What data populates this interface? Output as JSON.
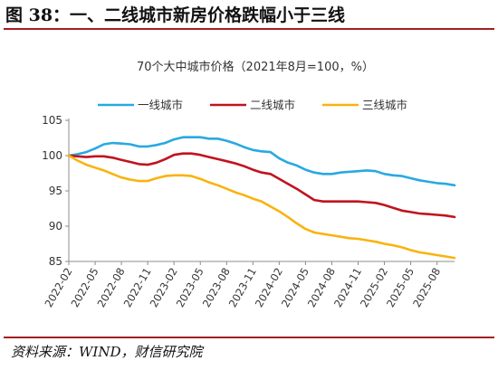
{
  "figure": {
    "label": "图 38：一、二线城市新房价格跌幅小于三线",
    "source": "资料来源：WIND，财信研究院",
    "colors": {
      "rule": "#a41e22"
    }
  },
  "chart_data": {
    "type": "line",
    "title": "70个大中城市价格（2021年8月=100，%）",
    "xlabel": "",
    "ylabel": "",
    "ylim": [
      85,
      105
    ],
    "yticks": [
      85,
      90,
      95,
      100,
      105
    ],
    "grid": false,
    "legend_position": "top",
    "x": [
      "2022-02",
      "2022-03",
      "2022-04",
      "2022-05",
      "2022-06",
      "2022-07",
      "2022-08",
      "2022-09",
      "2022-10",
      "2022-11",
      "2022-12",
      "2023-01",
      "2023-02",
      "2023-03",
      "2023-04",
      "2023-05",
      "2023-06",
      "2023-07",
      "2023-08",
      "2023-09",
      "2023-10",
      "2023-11",
      "2023-12",
      "2024-01",
      "2024-02",
      "2024-03",
      "2024-04",
      "2024-05",
      "2024-06",
      "2024-07",
      "2024-08",
      "2024-09",
      "2024-10",
      "2024-11",
      "2024-12",
      "2025-01",
      "2025-02",
      "2025-03",
      "2025-04",
      "2025-05",
      "2025-06",
      "2025-07",
      "2025-08",
      "2025-09",
      "2025-10"
    ],
    "xtick_labels": [
      "2022-02",
      "2022-05",
      "2022-08",
      "2022-11",
      "2023-02",
      "2023-05",
      "2023-08",
      "2023-11",
      "2024-02",
      "2024-05",
      "2024-08",
      "2024-11",
      "2025-02",
      "2025-05",
      "2025-08"
    ],
    "series": [
      {
        "name": "一线城市",
        "color": "#29a9e1",
        "values": [
          100.0,
          100.2,
          100.5,
          101.0,
          101.6,
          101.8,
          101.7,
          101.6,
          101.3,
          101.3,
          101.5,
          101.8,
          102.3,
          102.6,
          102.6,
          102.6,
          102.4,
          102.4,
          102.1,
          101.7,
          101.2,
          100.8,
          100.6,
          100.5,
          99.6,
          99.0,
          98.6,
          98.0,
          97.6,
          97.4,
          97.4,
          97.6,
          97.7,
          97.8,
          97.9,
          97.8,
          97.4,
          97.2,
          97.1,
          96.8,
          96.5,
          96.3,
          96.1,
          96.0,
          95.8
        ]
      },
      {
        "name": "二线城市",
        "color": "#c1131f",
        "values": [
          100.0,
          99.9,
          99.8,
          99.9,
          99.9,
          99.7,
          99.4,
          99.1,
          98.8,
          98.7,
          99.0,
          99.5,
          100.1,
          100.3,
          100.3,
          100.1,
          99.8,
          99.5,
          99.2,
          98.9,
          98.5,
          98.0,
          97.6,
          97.4,
          96.7,
          96.0,
          95.3,
          94.5,
          93.7,
          93.5,
          93.5,
          93.5,
          93.5,
          93.5,
          93.4,
          93.3,
          93.0,
          92.6,
          92.2,
          92.0,
          91.8,
          91.7,
          91.6,
          91.5,
          91.3
        ]
      },
      {
        "name": "三线城市",
        "color": "#f9b30f",
        "values": [
          100.0,
          99.3,
          98.7,
          98.3,
          97.9,
          97.4,
          96.9,
          96.6,
          96.4,
          96.4,
          96.8,
          97.1,
          97.2,
          97.2,
          97.1,
          96.7,
          96.2,
          95.8,
          95.3,
          94.8,
          94.4,
          93.9,
          93.5,
          92.8,
          92.1,
          91.3,
          90.4,
          89.6,
          89.1,
          88.9,
          88.7,
          88.5,
          88.3,
          88.2,
          88.0,
          87.8,
          87.5,
          87.3,
          87.0,
          86.6,
          86.3,
          86.1,
          85.9,
          85.7,
          85.5
        ]
      }
    ]
  }
}
